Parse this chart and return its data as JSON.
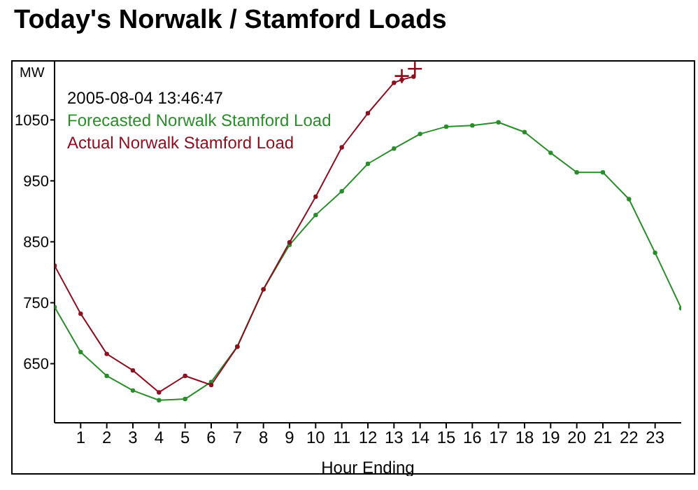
{
  "chart_data": {
    "type": "line",
    "title": "Today's Norwalk / Stamford Loads",
    "xlabel": "Hour Ending",
    "ylabel": "MW",
    "annotations": [
      "2005-08-04 13:46:47"
    ],
    "x": [
      0,
      1,
      2,
      3,
      4,
      5,
      6,
      7,
      8,
      9,
      10,
      11,
      12,
      13,
      14,
      15,
      16,
      17,
      18,
      19,
      20,
      21,
      22,
      23,
      24
    ],
    "xlim": [
      0,
      24
    ],
    "xticks": [
      1,
      2,
      3,
      4,
      5,
      6,
      7,
      8,
      9,
      10,
      11,
      12,
      13,
      14,
      15,
      16,
      17,
      18,
      19,
      20,
      21,
      22,
      23
    ],
    "ylim": [
      553,
      1148
    ],
    "yticks": [
      650,
      750,
      850,
      950,
      1050
    ],
    "grid": false,
    "legend": "top left",
    "marker": "circle",
    "line_style": "solid",
    "series": [
      {
        "name": "Forecasted Norwalk Stamford Load",
        "color": "#2a8c2a",
        "values": [
          743,
          669,
          630,
          606,
          590,
          592,
          620,
          678,
          772,
          845,
          894,
          933,
          978,
          1003,
          1027,
          1039,
          1041,
          1046,
          1030,
          996,
          964,
          964,
          920,
          832,
          741
        ]
      },
      {
        "name": "Actual Norwalk Stamford Load",
        "color": "#8c1020",
        "x": [
          0,
          1,
          2,
          3,
          4,
          5,
          6,
          7,
          8,
          9,
          10,
          11,
          12,
          13,
          13.3,
          13.75
        ],
        "values": [
          811,
          732,
          666,
          639,
          603,
          630,
          615,
          678,
          772,
          849,
          924,
          1005,
          1061,
          1111,
          1116,
          1121
        ]
      },
      {
        "type": "scatter",
        "color": "#8c1020",
        "marker": "cross",
        "x": [
          13.3,
          13.8
        ],
        "values": [
          1122,
          1134
        ]
      }
    ]
  }
}
